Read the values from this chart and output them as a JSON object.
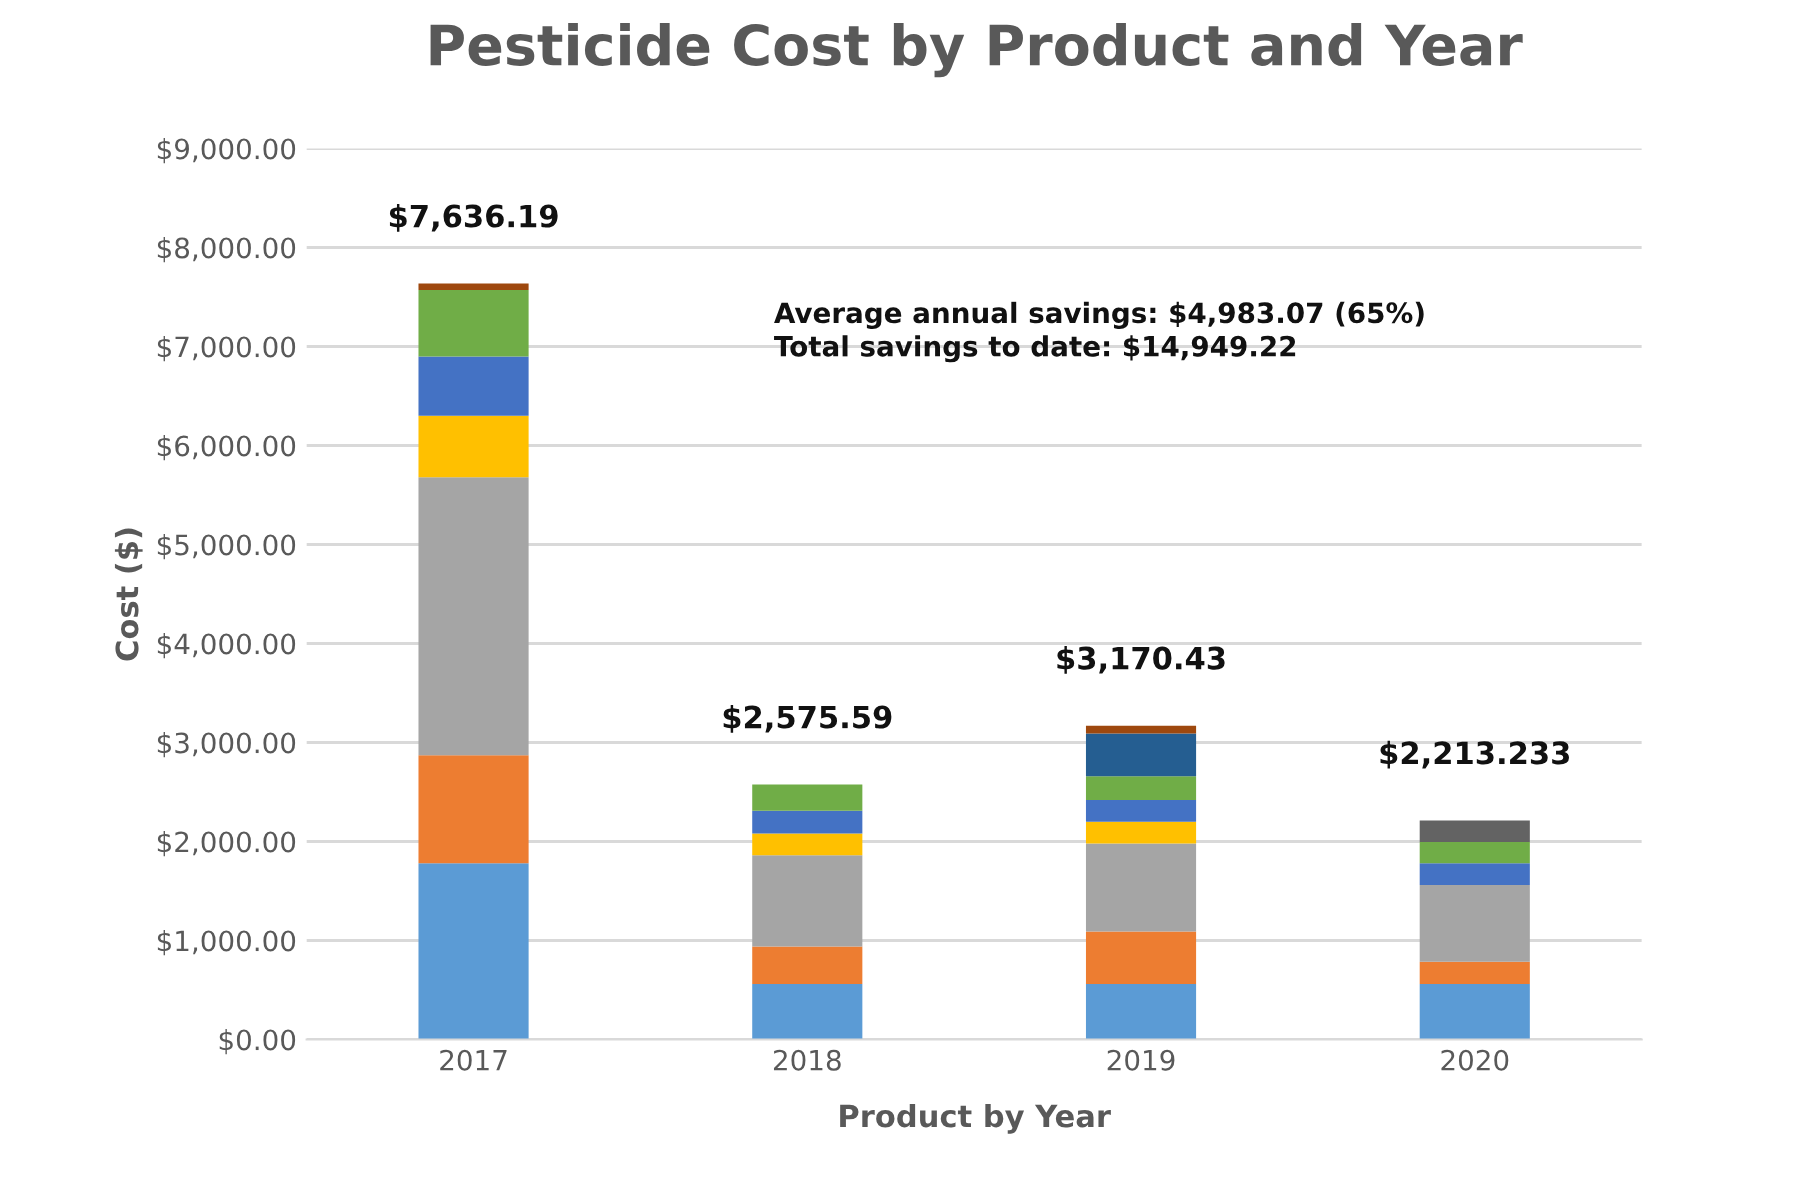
{
  "chart_data": {
    "type": "bar",
    "title": "Pesticide Cost by Product and Year",
    "xlabel": "Product by Year",
    "ylabel": "Cost ($)",
    "categories": [
      "2017",
      "2018",
      "2019",
      "2020"
    ],
    "stacked": true,
    "series": [
      {
        "color": "#5b9bd5",
        "values": [
          1780,
          560,
          560,
          560
        ]
      },
      {
        "color": "#ed7d31",
        "values": [
          1090,
          380,
          530,
          225
        ]
      },
      {
        "color": "#a5a5a5",
        "values": [
          2810,
          920,
          890,
          775
        ]
      },
      {
        "color": "#ffc000",
        "values": [
          620,
          220,
          220,
          0
        ]
      },
      {
        "color": "#4472c4",
        "values": [
          600,
          230,
          220,
          220
        ]
      },
      {
        "color": "#70ad47",
        "values": [
          670,
          265.59,
          240,
          215
        ]
      },
      {
        "color": "#255e91",
        "values": [
          0,
          0,
          430,
          0
        ]
      },
      {
        "color": "#9e480e",
        "values": [
          66.19,
          0,
          80.43,
          0
        ]
      },
      {
        "color": "#636363",
        "values": [
          0,
          0,
          0,
          218.233
        ]
      }
    ],
    "totals": [
      "$7,636.19",
      "$2,575.59",
      "$3,170.43",
      "$2,213.233"
    ],
    "annotations": [
      "Average annual savings: $4,983.07 (65%)\nTotal savings to date: $14,949.22"
    ],
    "ylim": [
      0,
      9000
    ],
    "yticks": [
      {
        "value": 0,
        "label": "$0.00"
      },
      {
        "value": 1000,
        "label": "$1,000.00"
      },
      {
        "value": 2000,
        "label": "$2,000.00"
      },
      {
        "value": 3000,
        "label": "$3,000.00"
      },
      {
        "value": 4000,
        "label": "$4,000.00"
      },
      {
        "value": 5000,
        "label": "$5,000.00"
      },
      {
        "value": 6000,
        "label": "$6,000.00"
      },
      {
        "value": 7000,
        "label": "$7,000.00"
      },
      {
        "value": 8000,
        "label": "$8,000.00"
      },
      {
        "value": 9000,
        "label": "$9,000.00"
      }
    ],
    "grid": "y"
  }
}
